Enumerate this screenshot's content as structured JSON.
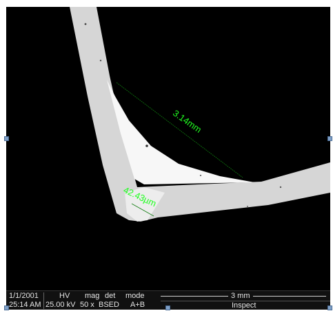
{
  "measurements": {
    "length_label": "3.14mm",
    "thickness_label": "42.43µm",
    "color": "#20ff20"
  },
  "databar": {
    "date": "1/1/2001",
    "time": "25:14 AM",
    "hv_label": "HV",
    "hv_value": "25.00 kV",
    "mag_label": "mag",
    "mag_value": "50 x",
    "det_label": "det",
    "det_value": "BSED",
    "mode_label": "mode",
    "mode_value": "A+B",
    "scalebar_label": "3 mm",
    "footer_label": "Inspect"
  },
  "colors": {
    "background": "#000000",
    "specimen_band": "#d9d9d9",
    "specimen_bright": "#ffffff",
    "selection_handle": "#7f9fc6"
  }
}
